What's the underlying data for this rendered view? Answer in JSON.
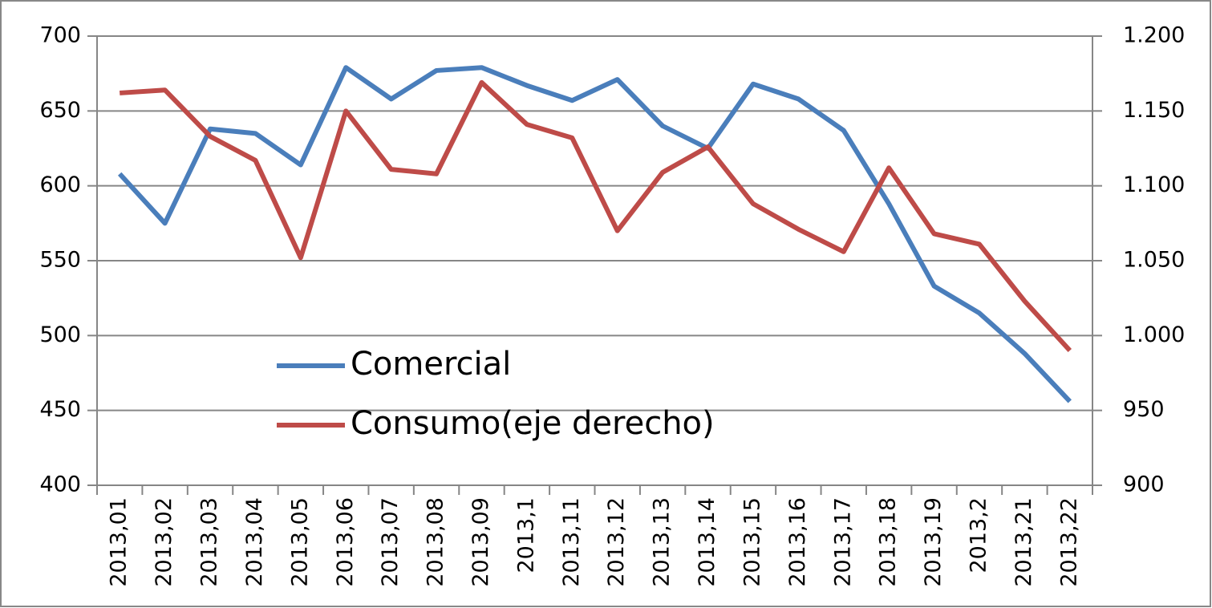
{
  "chart_data": {
    "type": "line",
    "categories": [
      "2013,01",
      "2013,02",
      "2013,03",
      "2013,04",
      "2013,05",
      "2013,06",
      "2013,07",
      "2013,08",
      "2013,09",
      "2013,1",
      "2013,11",
      "2013,12",
      "2013,13",
      "2013,14",
      "2013,15",
      "2013,16",
      "2013,17",
      "2013,18",
      "2013,19",
      "2013,2",
      "2013,21",
      "2013,22"
    ],
    "series": [
      {
        "name": "Comercial",
        "color": "#4a7ebb",
        "values": [
          608,
          575,
          638,
          635,
          614,
          679,
          658,
          677,
          679,
          667,
          657,
          671,
          640,
          625,
          668,
          658,
          637,
          588,
          533,
          515,
          488,
          456
        ]
      },
      {
        "name": "Consumo(eje derecho)",
        "color": "#be4b48",
        "axis": "y2",
        "values": [
          1162,
          1164,
          1133,
          1117,
          1052,
          1150,
          1111,
          1108,
          1169,
          1141,
          1132,
          1070,
          1109,
          1126,
          1088,
          1071,
          1056,
          1112,
          1068,
          1061,
          1023,
          990
        ]
      }
    ],
    "ylim": [
      400,
      700
    ],
    "yticks": [
      400,
      450,
      500,
      550,
      600,
      650,
      700
    ],
    "y2lim": [
      900,
      1200
    ],
    "y2ticks": [
      {
        "value": 900,
        "label": "900"
      },
      {
        "value": 950,
        "label": "950"
      },
      {
        "value": 1000,
        "label": "1.000"
      },
      {
        "value": 1050,
        "label": "1.050"
      },
      {
        "value": 1100,
        "label": "1.100"
      },
      {
        "value": 1150,
        "label": "1.150"
      },
      {
        "value": 1200,
        "label": "1.200"
      }
    ],
    "grid": true
  }
}
